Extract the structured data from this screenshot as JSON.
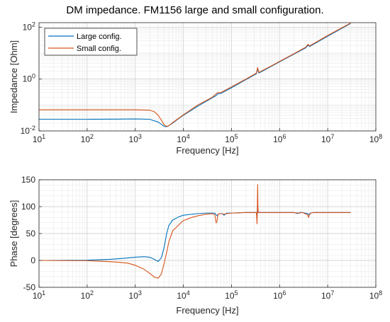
{
  "figure": {
    "title": "DM impedance. FM1156 large and small configuration."
  },
  "chart_data": [
    {
      "type": "line",
      "title": "DM impedance. FM1156 large and small configuration.",
      "xlabel": "Frequency [Hz]",
      "ylabel": "Impedance [Ohm]",
      "xscale": "log",
      "yscale": "log",
      "xlim": [
        10,
        100000000
      ],
      "ylim": [
        0.01,
        150
      ],
      "x_ticks": [
        "10^1",
        "10^2",
        "10^3",
        "10^4",
        "10^5",
        "10^6",
        "10^7",
        "10^8"
      ],
      "y_ticks": [
        "10^-2",
        "10^0",
        "10^2"
      ],
      "grid": true,
      "legend_position": "top-left",
      "series": [
        {
          "name": "Large config.",
          "color": "#0072BD",
          "x": [
            10,
            100,
            500,
            1000,
            2000,
            3000,
            3500,
            4000,
            4500,
            5000,
            6000,
            8000,
            10000,
            20000,
            40000,
            48000,
            52000,
            60000,
            100000,
            200000,
            330000,
            350000,
            370000,
            500000,
            1000000,
            2000000,
            3500000,
            3900000,
            4200000,
            10000000,
            30000000
          ],
          "y": [
            0.028,
            0.028,
            0.0285,
            0.029,
            0.028,
            0.022,
            0.018,
            0.015,
            0.0145,
            0.016,
            0.02,
            0.03,
            0.04,
            0.09,
            0.19,
            0.23,
            0.27,
            0.28,
            0.46,
            0.95,
            1.6,
            2.4,
            1.7,
            2.3,
            4.6,
            9.2,
            16,
            20,
            18,
            45,
            140
          ]
        },
        {
          "name": "Small config.",
          "color": "#D95319",
          "x": [
            10,
            100,
            500,
            1000,
            2000,
            2500,
            3000,
            3500,
            4000,
            4500,
            5000,
            6000,
            8000,
            10000,
            20000,
            40000,
            48000,
            52000,
            60000,
            100000,
            200000,
            330000,
            350000,
            370000,
            500000,
            1000000,
            2000000,
            3500000,
            3900000,
            4200000,
            10000000,
            30000000
          ],
          "y": [
            0.065,
            0.065,
            0.065,
            0.065,
            0.063,
            0.055,
            0.04,
            0.026,
            0.017,
            0.015,
            0.016,
            0.021,
            0.031,
            0.042,
            0.1,
            0.2,
            0.27,
            0.3,
            0.3,
            0.5,
            1.0,
            1.7,
            2.8,
            1.8,
            2.4,
            4.8,
            9.6,
            17,
            22,
            19,
            48,
            145
          ]
        }
      ]
    },
    {
      "type": "line",
      "title": "",
      "xlabel": "Frequency [Hz]",
      "ylabel": "Phase [degrees]",
      "xscale": "log",
      "yscale": "linear",
      "xlim": [
        10,
        100000000
      ],
      "ylim": [
        -50,
        150
      ],
      "x_ticks": [
        "10^1",
        "10^2",
        "10^3",
        "10^4",
        "10^5",
        "10^6",
        "10^7",
        "10^8"
      ],
      "y_ticks": [
        "-50",
        "0",
        "50",
        "100",
        "150"
      ],
      "grid": true,
      "series": [
        {
          "name": "Large config.",
          "color": "#0072BD",
          "x": [
            10,
            100,
            300,
            600,
            1000,
            1500,
            2000,
            2500,
            3000,
            3500,
            4000,
            4500,
            5000,
            6000,
            8000,
            10000,
            15000,
            20000,
            30000,
            45000,
            50000,
            55000,
            65000,
            70000,
            80000,
            100000,
            200000,
            330000,
            340000,
            345000,
            350000,
            355000,
            360000,
            400000,
            1000000,
            2000000,
            2400000,
            2600000,
            3000000,
            3900000,
            4100000,
            4300000,
            5000000,
            10000000,
            30000000
          ],
          "y": [
            0,
            0.5,
            2,
            4,
            6,
            7,
            6,
            2,
            -2,
            5,
            25,
            50,
            65,
            75,
            81,
            84,
            86,
            87,
            88,
            88,
            83,
            87,
            87,
            84,
            88,
            88,
            89,
            89,
            78,
            95,
            110,
            95,
            89,
            89,
            89,
            89,
            87,
            89,
            89,
            87,
            84,
            88,
            89,
            89,
            89
          ]
        },
        {
          "name": "Small config.",
          "color": "#D95319",
          "x": [
            10,
            100,
            200,
            400,
            700,
            1000,
            1500,
            2000,
            2500,
            3000,
            3500,
            4000,
            4500,
            5000,
            6000,
            8000,
            10000,
            15000,
            20000,
            30000,
            40000,
            45000,
            48000,
            50000,
            52000,
            55000,
            60000,
            70000,
            80000,
            100000,
            200000,
            330000,
            340000,
            345000,
            350000,
            355000,
            360000,
            400000,
            1000000,
            2000000,
            2500000,
            3000000,
            3800000,
            4000000,
            4200000,
            4400000,
            5000000,
            10000000,
            30000000
          ],
          "y": [
            0,
            -0.5,
            -1.5,
            -3,
            -5,
            -9,
            -16,
            -24,
            -31,
            -33,
            -25,
            -5,
            15,
            35,
            55,
            66,
            74,
            80,
            83,
            86,
            87,
            85,
            70,
            72,
            84,
            87,
            87,
            86,
            87,
            88,
            89,
            89,
            68,
            100,
            141,
            100,
            89,
            89,
            89,
            89,
            88,
            89,
            85,
            80,
            85,
            88,
            89,
            89,
            89
          ]
        }
      ]
    }
  ]
}
